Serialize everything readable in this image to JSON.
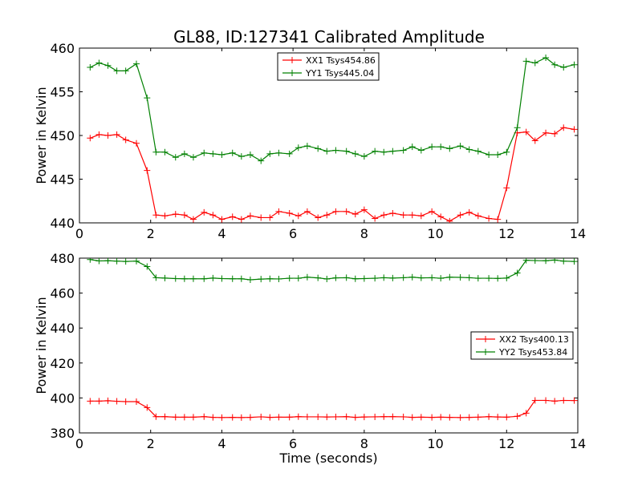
{
  "figure": {
    "title": "GL88, ID:127341 Calibrated Amplitude"
  },
  "chart_data": [
    {
      "type": "line",
      "title": "GL88, ID:127341 Calibrated Amplitude",
      "xlabel": "",
      "ylabel": "Power in Kelvin",
      "xlim": [
        0,
        14
      ],
      "ylim": [
        440,
        460
      ],
      "xticks": [
        0,
        2,
        4,
        6,
        8,
        10,
        12,
        14
      ],
      "yticks": [
        440,
        445,
        450,
        455,
        460
      ],
      "grid": false,
      "legend_position": "top-center",
      "x": [
        0.3,
        0.55,
        0.8,
        1.05,
        1.3,
        1.6,
        1.9,
        2.15,
        2.4,
        2.7,
        2.95,
        3.2,
        3.5,
        3.75,
        4.0,
        4.3,
        4.55,
        4.8,
        5.1,
        5.35,
        5.6,
        5.9,
        6.15,
        6.4,
        6.7,
        6.95,
        7.2,
        7.5,
        7.75,
        8.0,
        8.3,
        8.55,
        8.8,
        9.1,
        9.35,
        9.6,
        9.9,
        10.15,
        10.4,
        10.7,
        10.95,
        11.2,
        11.5,
        11.75,
        12.0,
        12.3,
        12.55,
        12.8,
        13.1,
        13.35,
        13.6,
        13.9
      ],
      "series": [
        {
          "name": "XX1 Tsys454.86",
          "color": "#ff0000",
          "values": [
            449.7,
            450.1,
            450.0,
            450.1,
            449.5,
            449.1,
            446.0,
            440.9,
            440.8,
            441.0,
            440.9,
            440.4,
            441.2,
            440.9,
            440.4,
            440.7,
            440.4,
            440.8,
            440.6,
            440.6,
            441.3,
            441.1,
            440.8,
            441.3,
            440.6,
            440.9,
            441.3,
            441.3,
            441.0,
            441.5,
            440.5,
            440.9,
            441.1,
            440.9,
            440.9,
            440.8,
            441.3,
            440.7,
            440.2,
            440.9,
            441.2,
            440.8,
            440.5,
            440.4,
            444.0,
            450.3,
            450.4,
            449.4,
            450.3,
            450.2,
            450.9,
            450.7
          ]
        },
        {
          "name": "YY1 Tsys445.04",
          "color": "#008000",
          "values": [
            457.8,
            458.3,
            458.0,
            457.4,
            457.4,
            458.2,
            454.3,
            448.1,
            448.1,
            447.5,
            447.9,
            447.5,
            448.0,
            447.9,
            447.8,
            448.0,
            447.6,
            447.8,
            447.1,
            447.9,
            448.0,
            447.9,
            448.6,
            448.8,
            448.5,
            448.2,
            448.3,
            448.2,
            447.9,
            447.6,
            448.2,
            448.1,
            448.2,
            448.3,
            448.7,
            448.3,
            448.7,
            448.7,
            448.5,
            448.8,
            448.4,
            448.2,
            447.8,
            447.8,
            448.1,
            450.9,
            458.5,
            458.3,
            458.9,
            458.1,
            457.8,
            458.1
          ]
        }
      ]
    },
    {
      "type": "line",
      "title": "",
      "xlabel": "Time (seconds)",
      "ylabel": "Power in Kelvin",
      "xlim": [
        0,
        14
      ],
      "ylim": [
        380,
        480
      ],
      "xticks": [
        0,
        2,
        4,
        6,
        8,
        10,
        12,
        14
      ],
      "yticks": [
        380,
        400,
        420,
        440,
        460,
        480
      ],
      "grid": false,
      "legend_position": "center-right",
      "x": [
        0.3,
        0.55,
        0.8,
        1.05,
        1.3,
        1.6,
        1.9,
        2.15,
        2.4,
        2.7,
        2.95,
        3.2,
        3.5,
        3.75,
        4.0,
        4.3,
        4.55,
        4.8,
        5.1,
        5.35,
        5.6,
        5.9,
        6.15,
        6.4,
        6.7,
        6.95,
        7.2,
        7.5,
        7.75,
        8.0,
        8.3,
        8.55,
        8.8,
        9.1,
        9.35,
        9.6,
        9.9,
        10.15,
        10.4,
        10.7,
        10.95,
        11.2,
        11.5,
        11.75,
        12.0,
        12.3,
        12.55,
        12.8,
        13.1,
        13.35,
        13.6,
        13.9
      ],
      "series": [
        {
          "name": "XX2 Tsys400.13",
          "color": "#ff0000",
          "values": [
            398.2,
            398.2,
            398.4,
            398.1,
            397.9,
            397.9,
            394.5,
            389.3,
            389.3,
            389.0,
            389.0,
            389.0,
            389.3,
            388.9,
            388.8,
            388.9,
            388.8,
            388.9,
            389.2,
            388.9,
            389.0,
            389.0,
            389.3,
            389.2,
            389.2,
            389.1,
            389.2,
            389.3,
            388.9,
            389.1,
            389.2,
            389.3,
            389.3,
            389.2,
            388.9,
            389.0,
            388.9,
            389.0,
            388.9,
            388.8,
            388.9,
            389.0,
            389.3,
            389.1,
            389.0,
            389.5,
            391.3,
            398.6,
            398.6,
            398.2,
            398.6,
            398.5
          ]
        },
        {
          "name": "YY2 Tsys453.84",
          "color": "#008000",
          "values": [
            479.2,
            478.4,
            478.5,
            478.3,
            478.1,
            478.3,
            475.2,
            468.8,
            468.6,
            468.3,
            468.2,
            468.2,
            468.2,
            468.6,
            468.3,
            468.2,
            468.2,
            467.6,
            468.0,
            468.2,
            468.1,
            468.5,
            468.5,
            469.1,
            468.7,
            468.1,
            468.7,
            468.8,
            468.2,
            468.3,
            468.5,
            468.8,
            468.6,
            468.8,
            469.1,
            468.7,
            468.8,
            468.5,
            469.1,
            469.0,
            468.8,
            468.5,
            468.5,
            468.4,
            468.6,
            471.5,
            478.8,
            478.6,
            478.5,
            478.9,
            478.3,
            478.1
          ]
        }
      ]
    }
  ]
}
